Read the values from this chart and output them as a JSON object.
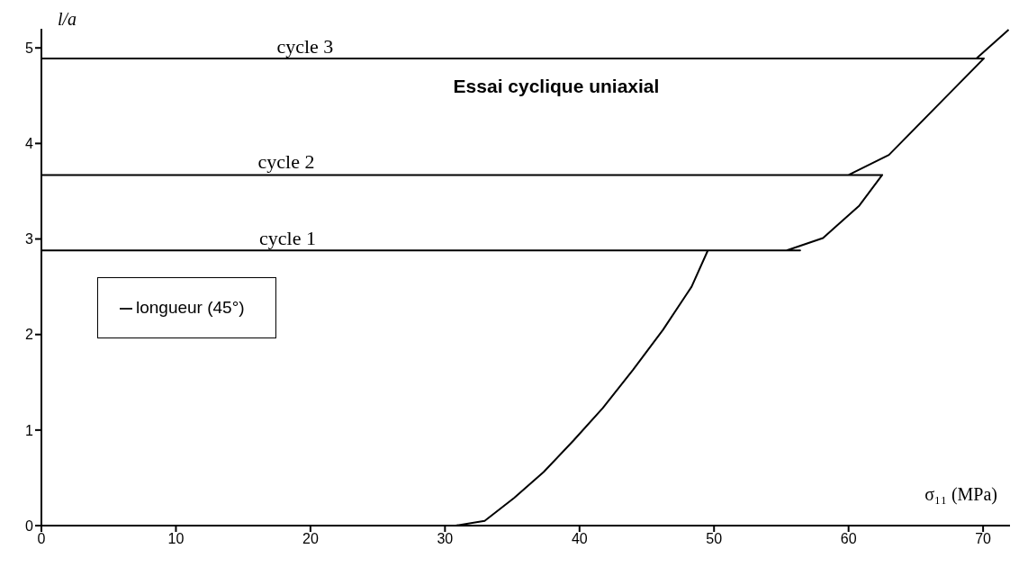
{
  "chart_data": {
    "type": "line",
    "title": "Essai cyclique uniaxial",
    "xlabel": "σ₁₁ (MPa)",
    "ylabel": "l/a",
    "series": [
      {
        "name": "longueur (45°)",
        "color": "#000000",
        "x": [
          0,
          30.8,
          32.95,
          35.14,
          37.33,
          39.55,
          41.73,
          43.98,
          46.21,
          48.33,
          49.54,
          56.4,
          0,
          55.4,
          58.1,
          60.8,
          62.5,
          0,
          60.0,
          63.0,
          70.06,
          0,
          69.5,
          71.9
        ],
        "values": [
          0,
          0,
          0.05,
          0.29,
          0.56,
          0.89,
          1.23,
          1.63,
          2.05,
          2.5,
          2.88,
          2.88,
          2.88,
          2.88,
          3.01,
          3.35,
          3.67,
          3.67,
          3.67,
          3.88,
          4.89,
          4.89,
          4.89,
          5.19
        ]
      }
    ],
    "annotations": [
      {
        "text": "cycle 1",
        "x": 18.3,
        "y": 2.9
      },
      {
        "text": "cycle 2",
        "x": 18.2,
        "y": 3.7
      },
      {
        "text": "cycle 3",
        "x": 19.6,
        "y": 4.91
      }
    ],
    "xlim": [
      0,
      72
    ],
    "ylim": [
      0,
      5.2
    ],
    "xticks": [
      0,
      10,
      20,
      30,
      40,
      50,
      60,
      70
    ],
    "yticks": [
      0,
      1,
      2,
      3,
      4,
      5
    ],
    "grid": false,
    "legend": "left",
    "marker": "none",
    "line_style": "solid"
  }
}
